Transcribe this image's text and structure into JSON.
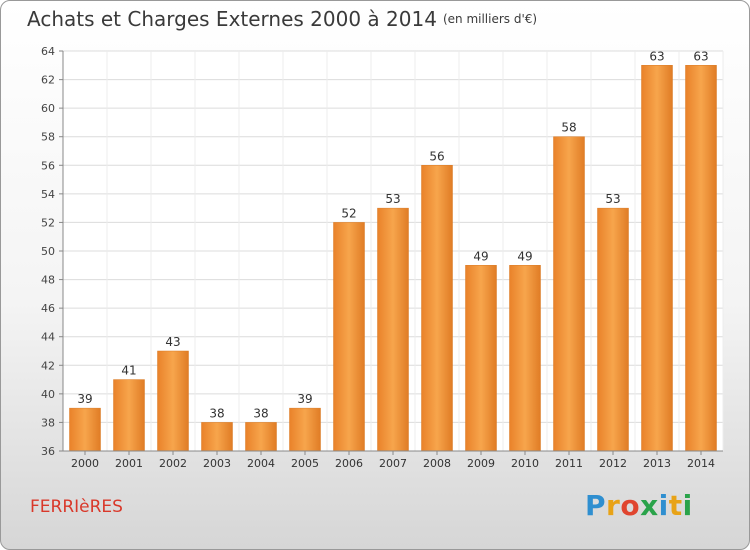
{
  "header": {
    "title": "Achats et Charges Externes 2000 à 2014",
    "subtitle": "(en milliers d'€)"
  },
  "footer": {
    "town": "FERRIèRES",
    "logo_letters": [
      "P",
      "r",
      "o",
      "x",
      "i",
      "t",
      "i"
    ],
    "logo_colors": [
      "#2f8fd0",
      "#e8a317",
      "#e0452f",
      "#2aa34a",
      "#2f8fd0",
      "#e8a317",
      "#2aa34a"
    ]
  },
  "chart_data": {
    "type": "bar",
    "categories": [
      "2000",
      "2001",
      "2002",
      "2003",
      "2004",
      "2005",
      "2006",
      "2007",
      "2008",
      "2009",
      "2010",
      "2011",
      "2012",
      "2013",
      "2014"
    ],
    "values": [
      39,
      41,
      43,
      38,
      38,
      39,
      52,
      53,
      56,
      49,
      49,
      58,
      53,
      63,
      63
    ],
    "ylim": [
      36,
      64
    ],
    "yticks": [
      36,
      38,
      40,
      42,
      44,
      46,
      48,
      50,
      52,
      54,
      56,
      58,
      60,
      62,
      64
    ],
    "grid": true,
    "bar_color": "#f0922e"
  }
}
